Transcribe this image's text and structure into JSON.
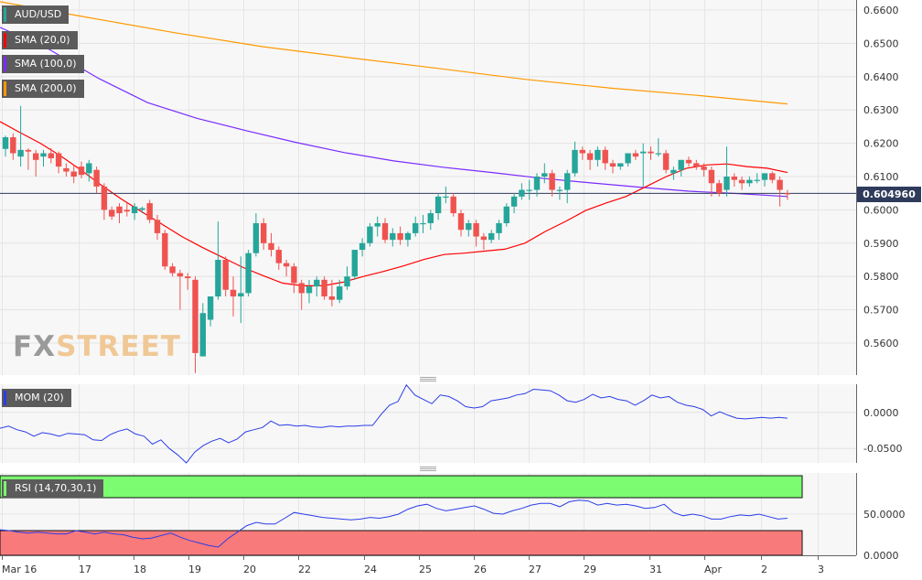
{
  "symbol": "AUD/USD",
  "current_price": "0.604960",
  "watermark": {
    "fx": "FX",
    "street": "STREET"
  },
  "indicators": {
    "sma20": "SMA (20,0)",
    "sma100": "SMA (100,0)",
    "sma200": "SMA (200,0)",
    "mom": "MOM (20)",
    "rsi": "RSI (14,70,30,1)"
  },
  "colors": {
    "up": "#26a69a",
    "down": "#ef5350",
    "sma20": "#ff0000",
    "sma100": "#7a2cff",
    "sma200": "#ff9900",
    "mom": "#2b3de8",
    "rsi": "#2b3de8",
    "overbought": "#7cfc71",
    "oversold": "#f97a7a",
    "price_line": "#2f3b5c"
  },
  "chart_data": [
    {
      "type": "candlestick",
      "title": "AUD/USD",
      "y_ticks": [
        "0.6600",
        "0.6500",
        "0.6400",
        "0.6300",
        "0.6200",
        "0.6100",
        "0.6000",
        "0.5900",
        "0.5800",
        "0.5700",
        "0.5600"
      ],
      "x_ticks": [
        "Mar 16",
        "17",
        "18",
        "19",
        "20",
        "22",
        "24",
        "25",
        "26",
        "27",
        "29",
        "31",
        "Apr",
        "2",
        "3"
      ],
      "ylim": [
        0.551,
        0.662
      ],
      "grid": true,
      "current_price": 0.60496,
      "candles": [
        [
          0.6183,
          0.6223,
          0.616,
          0.6218
        ],
        [
          0.6218,
          0.623,
          0.615,
          0.617
        ],
        [
          0.616,
          0.6312,
          0.613,
          0.618
        ],
        [
          0.618,
          0.6185,
          0.612,
          0.6175
        ],
        [
          0.617,
          0.618,
          0.61,
          0.615
        ],
        [
          0.616,
          0.618,
          0.613,
          0.617
        ],
        [
          0.617,
          0.6185,
          0.614,
          0.6155
        ],
        [
          0.617,
          0.6175,
          0.611,
          0.613
        ],
        [
          0.6125,
          0.614,
          0.61,
          0.6115
        ],
        [
          0.6115,
          0.6135,
          0.608,
          0.61
        ],
        [
          0.613,
          0.6145,
          0.6095,
          0.6105
        ],
        [
          0.611,
          0.615,
          0.6085,
          0.614
        ],
        [
          0.612,
          0.613,
          0.605,
          0.607
        ],
        [
          0.607,
          0.608,
          0.597,
          0.6
        ],
        [
          0.6,
          0.601,
          0.597,
          0.598
        ],
        [
          0.601,
          0.602,
          0.596,
          0.599
        ],
        [
          0.6,
          0.602,
          0.598,
          0.5995
        ],
        [
          0.599,
          0.602,
          0.597,
          0.601
        ],
        [
          0.6,
          0.601,
          0.599,
          0.6005
        ],
        [
          0.602,
          0.603,
          0.596,
          0.597
        ],
        [
          0.597,
          0.5985,
          0.591,
          0.593
        ],
        [
          0.593,
          0.594,
          0.582,
          0.583
        ],
        [
          0.583,
          0.584,
          0.58,
          0.581
        ],
        [
          0.581,
          0.582,
          0.57,
          0.58
        ],
        [
          0.58,
          0.581,
          0.576,
          0.5795
        ],
        [
          0.579,
          0.58,
          0.551,
          0.557
        ],
        [
          0.556,
          0.572,
          0.556,
          0.569
        ],
        [
          0.567,
          0.574,
          0.565,
          0.574
        ],
        [
          0.574,
          0.5965,
          0.573,
          0.585
        ],
        [
          0.585,
          0.586,
          0.574,
          0.576
        ],
        [
          0.576,
          0.58,
          0.568,
          0.574
        ],
        [
          0.574,
          0.586,
          0.566,
          0.575
        ],
        [
          0.575,
          0.588,
          0.574,
          0.587
        ],
        [
          0.587,
          0.599,
          0.586,
          0.596
        ],
        [
          0.596,
          0.5975,
          0.588,
          0.59
        ],
        [
          0.59,
          0.593,
          0.586,
          0.588
        ],
        [
          0.588,
          0.589,
          0.582,
          0.584
        ],
        [
          0.584,
          0.585,
          0.58,
          0.583
        ],
        [
          0.583,
          0.584,
          0.575,
          0.578
        ],
        [
          0.578,
          0.579,
          0.57,
          0.575
        ],
        [
          0.575,
          0.579,
          0.572,
          0.577
        ],
        [
          0.577,
          0.58,
          0.574,
          0.579
        ],
        [
          0.579,
          0.58,
          0.573,
          0.574
        ],
        [
          0.574,
          0.579,
          0.571,
          0.573
        ],
        [
          0.573,
          0.579,
          0.572,
          0.577
        ],
        [
          0.577,
          0.583,
          0.576,
          0.58
        ],
        [
          0.58,
          0.588,
          0.579,
          0.588
        ],
        [
          0.588,
          0.5915,
          0.586,
          0.59
        ],
        [
          0.59,
          0.596,
          0.589,
          0.595
        ],
        [
          0.595,
          0.598,
          0.592,
          0.596
        ],
        [
          0.596,
          0.5975,
          0.59,
          0.591
        ],
        [
          0.591,
          0.5945,
          0.589,
          0.593
        ],
        [
          0.593,
          0.595,
          0.5895,
          0.591
        ],
        [
          0.591,
          0.5935,
          0.589,
          0.593
        ],
        [
          0.593,
          0.598,
          0.592,
          0.596
        ],
        [
          0.596,
          0.5985,
          0.593,
          0.596
        ],
        [
          0.596,
          0.6,
          0.594,
          0.599
        ],
        [
          0.599,
          0.605,
          0.597,
          0.604
        ],
        [
          0.604,
          0.607,
          0.602,
          0.604
        ],
        [
          0.604,
          0.605,
          0.598,
          0.599
        ],
        [
          0.599,
          0.6,
          0.592,
          0.594
        ],
        [
          0.594,
          0.597,
          0.592,
          0.596
        ],
        [
          0.596,
          0.597,
          0.589,
          0.592
        ],
        [
          0.592,
          0.593,
          0.588,
          0.591
        ],
        [
          0.591,
          0.594,
          0.59,
          0.593
        ],
        [
          0.593,
          0.597,
          0.591,
          0.596
        ],
        [
          0.596,
          0.602,
          0.595,
          0.601
        ],
        [
          0.601,
          0.605,
          0.599,
          0.604
        ],
        [
          0.604,
          0.608,
          0.603,
          0.606
        ],
        [
          0.606,
          0.609,
          0.603,
          0.606
        ],
        [
          0.606,
          0.611,
          0.604,
          0.61
        ],
        [
          0.61,
          0.614,
          0.608,
          0.611
        ],
        [
          0.611,
          0.612,
          0.604,
          0.606
        ],
        [
          0.606,
          0.607,
          0.603,
          0.606
        ],
        [
          0.606,
          0.612,
          0.602,
          0.611
        ],
        [
          0.611,
          0.6205,
          0.61,
          0.618
        ],
        [
          0.618,
          0.619,
          0.615,
          0.617
        ],
        [
          0.617,
          0.618,
          0.612,
          0.615
        ],
        [
          0.615,
          0.619,
          0.613,
          0.618
        ],
        [
          0.618,
          0.619,
          0.612,
          0.614
        ],
        [
          0.614,
          0.615,
          0.611,
          0.613
        ],
        [
          0.613,
          0.614,
          0.612,
          0.614
        ],
        [
          0.614,
          0.617,
          0.613,
          0.617
        ],
        [
          0.617,
          0.618,
          0.615,
          0.616
        ],
        [
          0.617,
          0.62,
          0.607,
          0.6175
        ],
        [
          0.6175,
          0.619,
          0.615,
          0.617
        ],
        [
          0.617,
          0.6215,
          0.616,
          0.617
        ],
        [
          0.617,
          0.618,
          0.611,
          0.612
        ],
        [
          0.611,
          0.613,
          0.609,
          0.612
        ],
        [
          0.612,
          0.615,
          0.61,
          0.615
        ],
        [
          0.615,
          0.616,
          0.613,
          0.614
        ],
        [
          0.614,
          0.615,
          0.612,
          0.613
        ],
        [
          0.613,
          0.614,
          0.61,
          0.612
        ],
        [
          0.612,
          0.613,
          0.604,
          0.608
        ],
        [
          0.608,
          0.609,
          0.604,
          0.605
        ],
        [
          0.606,
          0.619,
          0.604,
          0.61
        ],
        [
          0.61,
          0.611,
          0.607,
          0.609
        ],
        [
          0.609,
          0.61,
          0.606,
          0.608
        ],
        [
          0.608,
          0.61,
          0.607,
          0.609
        ],
        [
          0.609,
          0.611,
          0.608,
          0.609
        ],
        [
          0.609,
          0.611,
          0.607,
          0.611
        ],
        [
          0.611,
          0.6115,
          0.608,
          0.609
        ],
        [
          0.609,
          0.61,
          0.601,
          0.606
        ],
        [
          0.605,
          0.606,
          0.603,
          0.6049
        ]
      ],
      "sma20": [
        0.6265,
        0.6232,
        0.62,
        0.6162,
        0.612,
        0.6075,
        0.6033,
        0.5995,
        0.5958,
        0.592,
        0.5888,
        0.5858,
        0.5828,
        0.5803,
        0.578,
        0.5772,
        0.5772,
        0.5783,
        0.58,
        0.5815,
        0.5832,
        0.5851,
        0.5866,
        0.587,
        0.5876,
        0.5882,
        0.59,
        0.5935,
        0.5965,
        0.5998,
        0.602,
        0.604,
        0.607,
        0.61,
        0.6125,
        0.6135,
        0.6138,
        0.613,
        0.6125,
        0.6112
      ],
      "sma100": [
        0.6548,
        0.6482,
        0.6395,
        0.6322,
        0.6275,
        0.6238,
        0.6203,
        0.6172,
        0.6147,
        0.6128,
        0.6112,
        0.6095,
        0.6081,
        0.6068,
        0.6056,
        0.6049,
        0.604
      ],
      "sma200": [
        0.6625,
        0.6578,
        0.6532,
        0.649,
        0.6457,
        0.6425,
        0.6392,
        0.6365,
        0.6343,
        0.6318
      ],
      "legend": [
        "SMA (20,0)",
        "SMA (100,0)",
        "SMA (200,0)"
      ]
    },
    {
      "type": "line",
      "title": "MOM (20)",
      "y_ticks": [
        "0.0000",
        "-0.0500"
      ],
      "ylim": [
        -0.07,
        0.039
      ],
      "series": [
        {
          "name": "MOM (20)",
          "values": [
            -0.022,
            -0.019,
            -0.024,
            -0.027,
            -0.033,
            -0.028,
            -0.03,
            -0.033,
            -0.029,
            -0.03,
            -0.031,
            -0.038,
            -0.039,
            -0.031,
            -0.026,
            -0.023,
            -0.03,
            -0.033,
            -0.044,
            -0.038,
            -0.05,
            -0.059,
            -0.07,
            -0.055,
            -0.046,
            -0.04,
            -0.036,
            -0.042,
            -0.037,
            -0.027,
            -0.024,
            -0.021,
            -0.012,
            -0.018,
            -0.017,
            -0.019,
            -0.018,
            -0.02,
            -0.021,
            -0.019,
            -0.02,
            -0.019,
            -0.019,
            -0.018,
            -0.018,
            -0.003,
            0.01,
            0.015,
            0.038,
            0.024,
            0.018,
            0.012,
            0.024,
            0.022,
            0.016,
            0.008,
            0.006,
            0.008,
            0.016,
            0.018,
            0.02,
            0.024,
            0.026,
            0.032,
            0.031,
            0.03,
            0.024,
            0.016,
            0.014,
            0.018,
            0.025,
            0.02,
            0.022,
            0.018,
            0.016,
            0.01,
            0.016,
            0.024,
            0.02,
            0.022,
            0.014,
            0.01,
            0.008,
            0.004,
            -0.005,
            0.001,
            -0.004,
            -0.008,
            -0.009,
            -0.008,
            -0.007,
            -0.008,
            -0.007,
            -0.008
          ]
        }
      ]
    },
    {
      "type": "line",
      "title": "RSI (14,70,30,1)",
      "y_ticks": [
        "50.0000",
        "0.0000"
      ],
      "ylim": [
        0,
        100
      ],
      "overbought": 70,
      "oversold": 30,
      "series": [
        {
          "name": "RSI (14,70,30,1)",
          "values": [
            31,
            30,
            28,
            27,
            28,
            27,
            26,
            26,
            30,
            28,
            26,
            28,
            26,
            25,
            22,
            20,
            21,
            24,
            27,
            22,
            18,
            15,
            12,
            10,
            20,
            28,
            36,
            40,
            38,
            38,
            45,
            52,
            50,
            48,
            46,
            45,
            44,
            43,
            44,
            46,
            45,
            47,
            50,
            56,
            60,
            62,
            57,
            54,
            56,
            58,
            60,
            56,
            51,
            50,
            54,
            57,
            61,
            63,
            63,
            59,
            65,
            67,
            66,
            61,
            63,
            61,
            62,
            60,
            57,
            58,
            62,
            52,
            48,
            50,
            48,
            44,
            44,
            47,
            49,
            48,
            50,
            47,
            44,
            45
          ]
        }
      ]
    }
  ]
}
